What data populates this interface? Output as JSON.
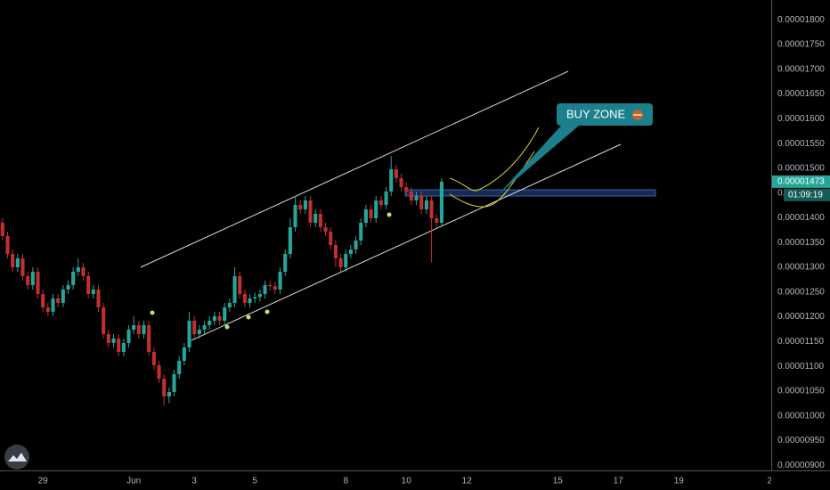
{
  "chart_data": {
    "type": "candlestick",
    "up_color": "#26a69a",
    "down_color": "#c0302f",
    "grid": false,
    "annotation": "BUY ZONE",
    "last_price": 1.473e-05,
    "countdown": "01:09:19",
    "xlim": [
      -0.5,
      152.3
    ],
    "xticks": [
      {
        "value": 8,
        "label": "29"
      },
      {
        "value": 26,
        "label": "Jun"
      },
      {
        "value": 38,
        "label": "3"
      },
      {
        "value": 50,
        "label": "5"
      },
      {
        "value": 68,
        "label": "8"
      },
      {
        "value": 80,
        "label": "10"
      },
      {
        "value": 92,
        "label": "12"
      },
      {
        "value": 110,
        "label": "15"
      },
      {
        "value": 122,
        "label": "17"
      },
      {
        "value": 134,
        "label": "19"
      },
      {
        "value": 152,
        "label": "2"
      }
    ],
    "ylim": [
      8.95e-06,
      1.84e-05
    ],
    "yticks": [
      {
        "value": 1.8e-05,
        "label": "0.00001800"
      },
      {
        "value": 1.75e-05,
        "label": "0.00001750"
      },
      {
        "value": 1.7e-05,
        "label": "0.00001700"
      },
      {
        "value": 1.65e-05,
        "label": "0.00001650"
      },
      {
        "value": 1.6e-05,
        "label": "0.00001600"
      },
      {
        "value": 1.55e-05,
        "label": "0.00001550"
      },
      {
        "value": 1.5e-05,
        "label": "0.00001500"
      },
      {
        "value": 1.45e-05,
        "label": "0.00001450"
      },
      {
        "value": 1.4e-05,
        "label": "0.00001400"
      },
      {
        "value": 1.35e-05,
        "label": "0.00001350"
      },
      {
        "value": 1.3e-05,
        "label": "0.00001300"
      },
      {
        "value": 1.25e-05,
        "label": "0.00001250"
      },
      {
        "value": 1.2e-05,
        "label": "0.00001200"
      },
      {
        "value": 1.15e-05,
        "label": "0.00001150"
      },
      {
        "value": 1.1e-05,
        "label": "0.00001100"
      },
      {
        "value": 1.05e-05,
        "label": "0.00001050"
      },
      {
        "value": 1e-05,
        "label": "0.00001000"
      },
      {
        "value": 9.5e-06,
        "label": "0.00000950"
      },
      {
        "value": 9e-06,
        "label": "0.00000900"
      }
    ],
    "open": [
      1.39e-05,
      1.363e-05,
      1.327e-05,
      1.3e-05,
      1.318e-05,
      1.282e-05,
      1.264e-05,
      1.291e-05,
      1.246e-05,
      1.219e-05,
      1.21e-05,
      1.237e-05,
      1.228e-05,
      1.255e-05,
      1.264e-05,
      1.291e-05,
      1.3e-05,
      1.282e-05,
      1.246e-05,
      1.255e-05,
      1.219e-05,
      1.165e-05,
      1.147e-05,
      1.156e-05,
      1.129e-05,
      1.147e-05,
      1.174e-05,
      1.183e-05,
      1.165e-05,
      1.183e-05,
      1.129e-05,
      1.102e-05,
      1.075e-05,
      1.039e-05,
      1.048e-05,
      1.084e-05,
      1.111e-05,
      1.138e-05,
      1.192e-05,
      1.165e-05,
      1.174e-05,
      1.183e-05,
      1.192e-05,
      1.201e-05,
      1.192e-05,
      1.219e-05,
      1.228e-05,
      1.282e-05,
      1.246e-05,
      1.228e-05,
      1.237e-05,
      1.24e-05,
      1.246e-05,
      1.264e-05,
      1.262e-05,
      1.255e-05,
      1.291e-05,
      1.327e-05,
      1.381e-05,
      1.426e-05,
      1.417e-05,
      1.435e-05,
      1.39e-05,
      1.408e-05,
      1.381e-05,
      1.372e-05,
      1.345e-05,
      1.318e-05,
      1.3e-05,
      1.327e-05,
      1.336e-05,
      1.354e-05,
      1.39e-05,
      1.417e-05,
      1.399e-05,
      1.435e-05,
      1.426e-05,
      1.453e-05,
      1.498e-05,
      1.48e-05,
      1.462e-05,
      1.453e-05,
      1.435e-05,
      1.444e-05,
      1.417e-05,
      1.435e-05,
      1.399e-05,
      1.39e-05
    ],
    "high": [
      1.399e-05,
      1.372e-05,
      1.336e-05,
      1.327e-05,
      1.327e-05,
      1.291e-05,
      1.3e-05,
      1.3e-05,
      1.255e-05,
      1.228e-05,
      1.246e-05,
      1.246e-05,
      1.264e-05,
      1.273e-05,
      1.3e-05,
      1.318e-05,
      1.309e-05,
      1.291e-05,
      1.264e-05,
      1.264e-05,
      1.228e-05,
      1.174e-05,
      1.165e-05,
      1.165e-05,
      1.156e-05,
      1.183e-05,
      1.201e-05,
      1.192e-05,
      1.192e-05,
      1.192e-05,
      1.138e-05,
      1.111e-05,
      1.084e-05,
      1.057e-05,
      1.093e-05,
      1.12e-05,
      1.147e-05,
      1.21e-05,
      1.201e-05,
      1.183e-05,
      1.192e-05,
      1.201e-05,
      1.21e-05,
      1.21e-05,
      1.228e-05,
      1.237e-05,
      1.3e-05,
      1.291e-05,
      1.255e-05,
      1.246e-05,
      1.249e-05,
      1.255e-05,
      1.273e-05,
      1.273e-05,
      1.271e-05,
      1.3e-05,
      1.336e-05,
      1.399e-05,
      1.444e-05,
      1.435e-05,
      1.444e-05,
      1.444e-05,
      1.417e-05,
      1.417e-05,
      1.39e-05,
      1.381e-05,
      1.354e-05,
      1.327e-05,
      1.336e-05,
      1.345e-05,
      1.363e-05,
      1.399e-05,
      1.426e-05,
      1.426e-05,
      1.444e-05,
      1.444e-05,
      1.462e-05,
      1.525e-05,
      1.507e-05,
      1.489e-05,
      1.471e-05,
      1.462e-05,
      1.453e-05,
      1.453e-05,
      1.444e-05,
      1.444e-05,
      1.408e-05,
      1.48e-05
    ],
    "low": [
      1.354e-05,
      1.318e-05,
      1.291e-05,
      1.291e-05,
      1.273e-05,
      1.255e-05,
      1.255e-05,
      1.237e-05,
      1.21e-05,
      1.201e-05,
      1.201e-05,
      1.219e-05,
      1.219e-05,
      1.246e-05,
      1.255e-05,
      1.282e-05,
      1.273e-05,
      1.237e-05,
      1.237e-05,
      1.21e-05,
      1.156e-05,
      1.138e-05,
      1.138e-05,
      1.12e-05,
      1.12e-05,
      1.138e-05,
      1.165e-05,
      1.156e-05,
      1.156e-05,
      1.12e-05,
      1.093e-05,
      1.066e-05,
      1.02e-05,
      1.025e-05,
      1.039e-05,
      1.075e-05,
      1.102e-05,
      1.129e-05,
      1.156e-05,
      1.156e-05,
      1.165e-05,
      1.174e-05,
      1.183e-05,
      1.183e-05,
      1.183e-05,
      1.21e-05,
      1.219e-05,
      1.237e-05,
      1.219e-05,
      1.219e-05,
      1.228e-05,
      1.231e-05,
      1.237e-05,
      1.253e-05,
      1.246e-05,
      1.246e-05,
      1.282e-05,
      1.318e-05,
      1.372e-05,
      1.408e-05,
      1.408e-05,
      1.381e-05,
      1.381e-05,
      1.372e-05,
      1.363e-05,
      1.336e-05,
      1.3e-05,
      1.291e-05,
      1.291e-05,
      1.318e-05,
      1.327e-05,
      1.345e-05,
      1.381e-05,
      1.39e-05,
      1.39e-05,
      1.417e-05,
      1.417e-05,
      1.444e-05,
      1.471e-05,
      1.453e-05,
      1.444e-05,
      1.426e-05,
      1.426e-05,
      1.408e-05,
      1.408e-05,
      1.31e-05,
      1.381e-05,
      1.381e-05
    ],
    "close": [
      1.363e-05,
      1.327e-05,
      1.3e-05,
      1.318e-05,
      1.282e-05,
      1.264e-05,
      1.291e-05,
      1.246e-05,
      1.219e-05,
      1.21e-05,
      1.237e-05,
      1.228e-05,
      1.255e-05,
      1.264e-05,
      1.291e-05,
      1.3e-05,
      1.282e-05,
      1.246e-05,
      1.255e-05,
      1.219e-05,
      1.165e-05,
      1.147e-05,
      1.156e-05,
      1.129e-05,
      1.147e-05,
      1.174e-05,
      1.183e-05,
      1.165e-05,
      1.183e-05,
      1.129e-05,
      1.102e-05,
      1.075e-05,
      1.039e-05,
      1.048e-05,
      1.084e-05,
      1.111e-05,
      1.138e-05,
      1.192e-05,
      1.165e-05,
      1.174e-05,
      1.183e-05,
      1.192e-05,
      1.201e-05,
      1.192e-05,
      1.219e-05,
      1.228e-05,
      1.282e-05,
      1.246e-05,
      1.228e-05,
      1.237e-05,
      1.24e-05,
      1.246e-05,
      1.264e-05,
      1.262e-05,
      1.255e-05,
      1.291e-05,
      1.327e-05,
      1.381e-05,
      1.426e-05,
      1.417e-05,
      1.435e-05,
      1.39e-05,
      1.408e-05,
      1.381e-05,
      1.372e-05,
      1.345e-05,
      1.318e-05,
      1.3e-05,
      1.327e-05,
      1.336e-05,
      1.354e-05,
      1.39e-05,
      1.417e-05,
      1.399e-05,
      1.435e-05,
      1.426e-05,
      1.453e-05,
      1.498e-05,
      1.48e-05,
      1.462e-05,
      1.453e-05,
      1.435e-05,
      1.444e-05,
      1.417e-05,
      1.435e-05,
      1.399e-05,
      1.39e-05,
      1.473e-05
    ]
  }
}
